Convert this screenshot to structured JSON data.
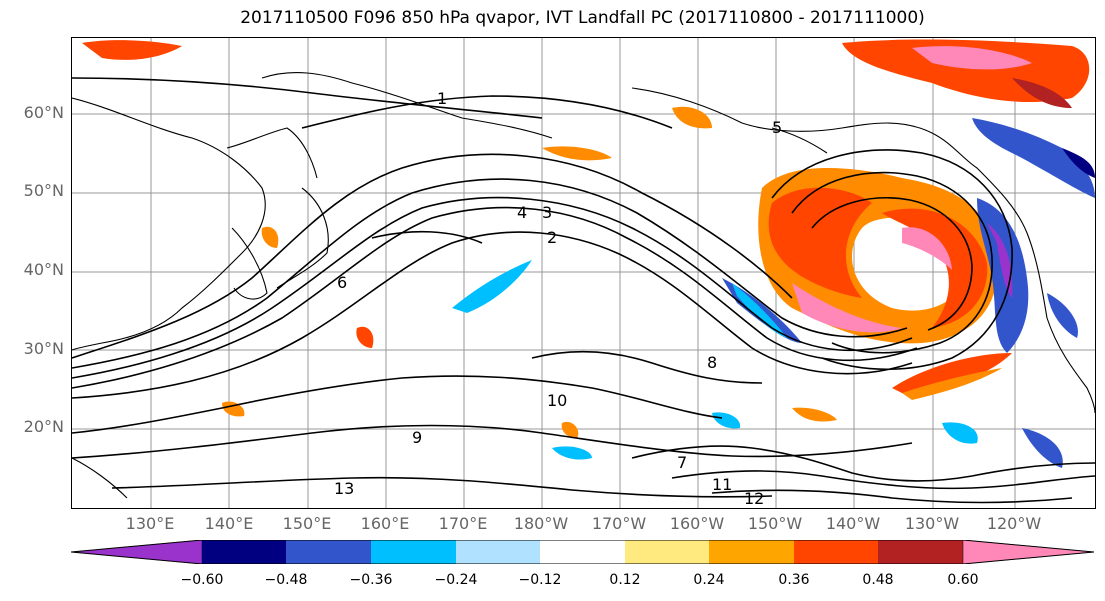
{
  "title": "2017110500 F096 850 hPa qvapor, IVT Landfall PC (2017110800 - 2017111000)",
  "lat_labels": [
    "60°N",
    "50°N",
    "40°N",
    "30°N",
    "20°N"
  ],
  "lon_labels": [
    "130°E",
    "140°E",
    "150°E",
    "160°E",
    "170°E",
    "180°W",
    "170°W",
    "160°W",
    "150°W",
    "140°W",
    "130°W",
    "120°W"
  ],
  "contour_labels": [
    "1",
    "2",
    "3",
    "4",
    "5",
    "6",
    "7",
    "8",
    "9",
    "10",
    "11",
    "12",
    "13"
  ],
  "colorbar": {
    "ticks": [
      "−0.60",
      "−0.48",
      "−0.36",
      "−0.24",
      "−0.12",
      "0.12",
      "0.24",
      "0.36",
      "0.48",
      "0.60"
    ],
    "colors": [
      "#9933cc",
      "#000080",
      "#3355cc",
      "#00bfff",
      "#b0e2ff",
      "#ffffff",
      "#ffea80",
      "#ffa500",
      "#ff4500",
      "#b22222",
      "#ff88b8"
    ]
  }
}
